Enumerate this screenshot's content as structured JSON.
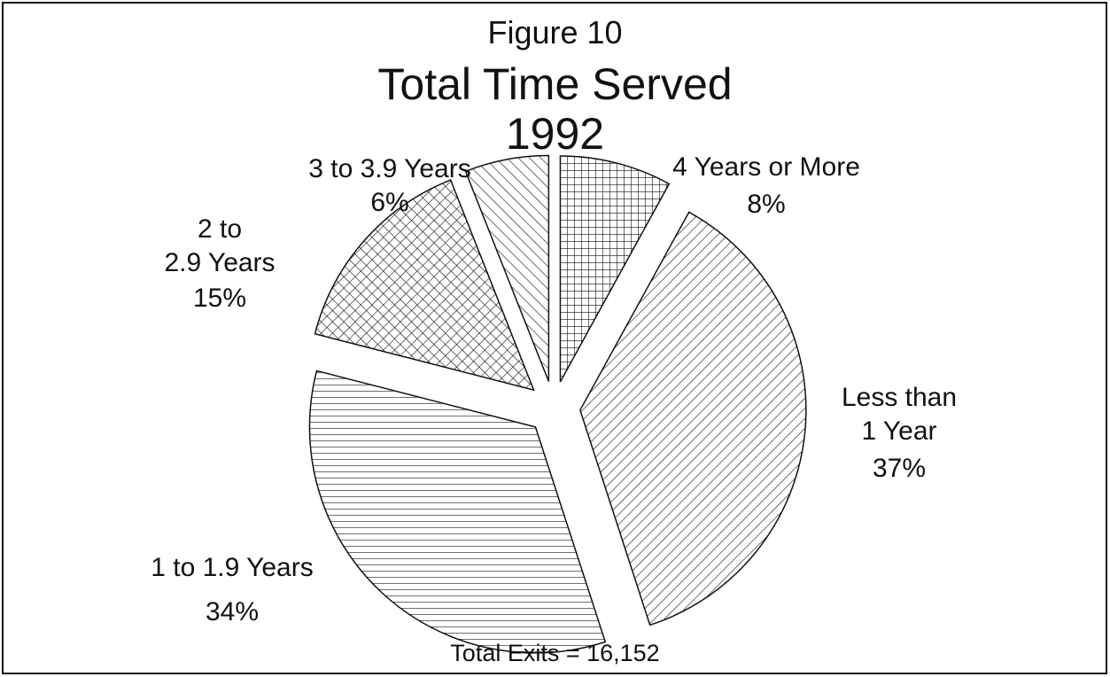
{
  "chart_data": {
    "type": "pie",
    "figure": "Figure 10",
    "title": "Total Time Served",
    "subtitle": "1992",
    "categories": [
      "4 Years or More",
      "Less than\n1 Year",
      "1 to 1.9 Years",
      "2 to\n2.9 Years",
      "3 to 3.9 Years"
    ],
    "values": [
      8,
      37,
      34,
      15,
      6
    ],
    "value_labels": [
      "8%",
      "37%",
      "34%",
      "15%",
      "6%"
    ],
    "annotation": "Total Exits = 16,152"
  }
}
